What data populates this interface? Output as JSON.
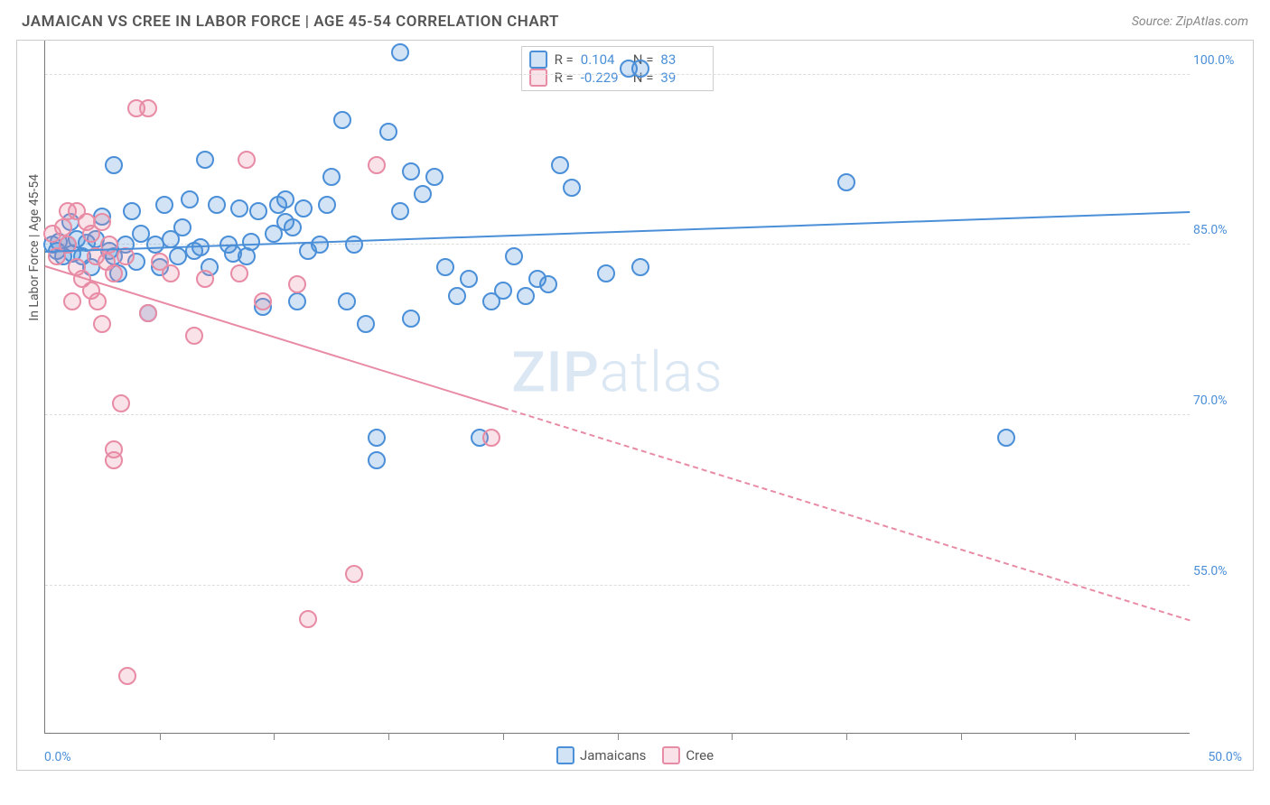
{
  "title": "JAMAICAN VS CREE IN LABOR FORCE | AGE 45-54 CORRELATION CHART",
  "source": "Source: ZipAtlas.com",
  "watermark_bold": "ZIP",
  "watermark_light": "atlas",
  "yaxis_title": "In Labor Force | Age 45-54",
  "chart": {
    "type": "scatter",
    "background_color": "#ffffff",
    "grid_color": "#dddddd",
    "grid_dash": "dashed",
    "border_color": "#cccccc",
    "axis_color": "#777777",
    "x_min": 0.0,
    "x_max": 50.0,
    "x_min_label": "0.0%",
    "x_max_label": "50.0%",
    "x_tick_positions_pct": [
      10,
      20,
      30,
      40,
      50,
      60,
      70,
      80,
      90
    ],
    "y_ticks": [
      {
        "value": 55.0,
        "label": "55.0%"
      },
      {
        "value": 70.0,
        "label": "70.0%"
      },
      {
        "value": 85.0,
        "label": "85.0%"
      },
      {
        "value": 100.0,
        "label": "100.0%"
      }
    ],
    "y_min": 42.0,
    "y_max": 103.0,
    "label_color": "#4a8fd8",
    "label_fontsize": 14,
    "point_radius": 10,
    "point_border_width": 2,
    "point_fill_opacity": 0.3
  },
  "series": [
    {
      "name": "Jamaicans",
      "color": "#4a8fd8",
      "fill": "rgba(74,143,216,0.25)",
      "r_label": "R =",
      "r_value": "0.104",
      "n_label": "N =",
      "n_value": "83",
      "trend": {
        "x1": 0,
        "y1": 84.5,
        "x2": 50,
        "y2": 88.0,
        "width": 2,
        "dash": "solid",
        "extrapolate_from_x": 0
      },
      "points": [
        [
          0.3,
          85.0
        ],
        [
          0.5,
          84.5
        ],
        [
          0.6,
          85.3
        ],
        [
          0.8,
          84.0
        ],
        [
          1.0,
          85.0
        ],
        [
          1.1,
          87.0
        ],
        [
          1.2,
          84.2
        ],
        [
          1.4,
          85.5
        ],
        [
          1.6,
          84.0
        ],
        [
          1.8,
          85.2
        ],
        [
          2.0,
          83.0
        ],
        [
          2.2,
          85.5
        ],
        [
          2.5,
          87.5
        ],
        [
          2.8,
          84.5
        ],
        [
          3.0,
          84.0
        ],
        [
          3.0,
          92.0
        ],
        [
          3.2,
          82.5
        ],
        [
          3.5,
          85.0
        ],
        [
          3.8,
          88.0
        ],
        [
          4.0,
          83.5
        ],
        [
          4.2,
          86.0
        ],
        [
          4.5,
          79.0
        ],
        [
          4.8,
          85.0
        ],
        [
          5.0,
          83.0
        ],
        [
          5.2,
          88.5
        ],
        [
          5.5,
          85.5
        ],
        [
          5.8,
          84.0
        ],
        [
          6.0,
          86.5
        ],
        [
          6.3,
          89.0
        ],
        [
          6.5,
          84.5
        ],
        [
          6.8,
          84.8
        ],
        [
          7.0,
          92.5
        ],
        [
          7.2,
          83.0
        ],
        [
          7.5,
          88.5
        ],
        [
          8.0,
          85.0
        ],
        [
          8.2,
          84.2
        ],
        [
          8.5,
          88.2
        ],
        [
          8.8,
          84.0
        ],
        [
          9.0,
          85.3
        ],
        [
          9.3,
          88.0
        ],
        [
          9.5,
          79.5
        ],
        [
          10.0,
          86.0
        ],
        [
          10.2,
          88.5
        ],
        [
          10.5,
          87.0
        ],
        [
          10.5,
          89.0
        ],
        [
          10.8,
          86.5
        ],
        [
          11.0,
          80.0
        ],
        [
          11.3,
          88.2
        ],
        [
          11.5,
          84.5
        ],
        [
          12.0,
          85.0
        ],
        [
          12.3,
          88.5
        ],
        [
          12.5,
          91.0
        ],
        [
          13.0,
          96.0
        ],
        [
          13.2,
          80.0
        ],
        [
          13.5,
          85.0
        ],
        [
          14.0,
          78.0
        ],
        [
          14.5,
          68.0
        ],
        [
          14.5,
          66.0
        ],
        [
          15.0,
          95.0
        ],
        [
          15.5,
          88.0
        ],
        [
          15.5,
          102.0
        ],
        [
          16.0,
          91.5
        ],
        [
          16.0,
          78.5
        ],
        [
          16.5,
          89.5
        ],
        [
          17.0,
          91.0
        ],
        [
          17.5,
          83.0
        ],
        [
          18.0,
          80.5
        ],
        [
          18.5,
          82.0
        ],
        [
          19.0,
          68.0
        ],
        [
          19.5,
          80.0
        ],
        [
          20.0,
          81.0
        ],
        [
          20.5,
          84.0
        ],
        [
          21.0,
          80.5
        ],
        [
          21.5,
          82.0
        ],
        [
          22.0,
          81.5
        ],
        [
          22.5,
          92.0
        ],
        [
          23.0,
          90.0
        ],
        [
          24.5,
          82.5
        ],
        [
          25.5,
          100.5
        ],
        [
          26.0,
          100.5
        ],
        [
          26.0,
          83.0
        ],
        [
          35.0,
          90.5
        ],
        [
          42.0,
          68.0
        ]
      ]
    },
    {
      "name": "Cree",
      "color": "#e88ba5",
      "fill": "rgba(232,139,165,0.25)",
      "r_label": "R =",
      "r_value": "-0.229",
      "n_label": "N =",
      "n_value": "39",
      "trend": {
        "x1": 0,
        "y1": 83.2,
        "x2": 50,
        "y2": 52.0,
        "width": 2,
        "dash_solid_until_x": 20,
        "dash": "dashed"
      },
      "points": [
        [
          0.3,
          86.0
        ],
        [
          0.5,
          84.0
        ],
        [
          0.8,
          86.5
        ],
        [
          1.0,
          85.0
        ],
        [
          1.0,
          88.0
        ],
        [
          1.2,
          80.0
        ],
        [
          1.4,
          83.0
        ],
        [
          1.4,
          88.0
        ],
        [
          1.6,
          82.0
        ],
        [
          1.8,
          87.0
        ],
        [
          2.0,
          86.0
        ],
        [
          2.0,
          81.0
        ],
        [
          2.2,
          84.0
        ],
        [
          2.3,
          80.0
        ],
        [
          2.5,
          87.0
        ],
        [
          2.5,
          78.0
        ],
        [
          2.7,
          83.5
        ],
        [
          2.8,
          85.0
        ],
        [
          3.0,
          82.5
        ],
        [
          3.0,
          67.0
        ],
        [
          3.0,
          66.0
        ],
        [
          3.3,
          71.0
        ],
        [
          3.5,
          84.0
        ],
        [
          3.6,
          47.0
        ],
        [
          4.0,
          97.0
        ],
        [
          4.5,
          79.0
        ],
        [
          4.5,
          97.0
        ],
        [
          5.0,
          83.5
        ],
        [
          5.5,
          82.5
        ],
        [
          6.5,
          77.0
        ],
        [
          7.0,
          82.0
        ],
        [
          8.5,
          82.5
        ],
        [
          8.8,
          92.5
        ],
        [
          9.5,
          80.0
        ],
        [
          11.0,
          81.5
        ],
        [
          11.5,
          52.0
        ],
        [
          13.5,
          56.0
        ],
        [
          14.5,
          92.0
        ],
        [
          19.5,
          68.0
        ]
      ]
    }
  ],
  "legend_bottom": [
    {
      "label": "Jamaicans",
      "color": "#4a8fd8",
      "fill": "rgba(74,143,216,0.25)"
    },
    {
      "label": "Cree",
      "color": "#e88ba5",
      "fill": "rgba(232,139,165,0.25)"
    }
  ]
}
